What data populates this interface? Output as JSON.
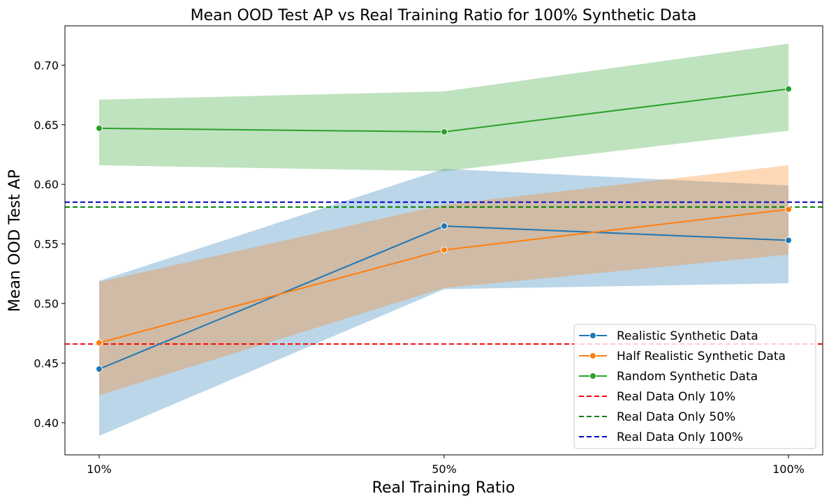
{
  "chart_data": {
    "type": "line",
    "title": "Mean OOD Test AP vs Real Training Ratio for 100% Synthetic Data",
    "xlabel": "Real Training Ratio",
    "ylabel": "Mean OOD Test AP",
    "categories": [
      "10%",
      "50%",
      "100%"
    ],
    "ylim": [
      0.373,
      0.733
    ],
    "yticks": [
      "0.40",
      "0.45",
      "0.50",
      "0.55",
      "0.60",
      "0.65",
      "0.70"
    ],
    "ytick_values": [
      0.4,
      0.45,
      0.5,
      0.55,
      0.6,
      0.65,
      0.7
    ],
    "series": [
      {
        "name": "Realistic Synthetic Data",
        "color": "#1f77b4",
        "band_color": "#1f77b4",
        "values": [
          0.445,
          0.565,
          0.553
        ],
        "lower": [
          0.389,
          0.512,
          0.517
        ],
        "upper": [
          0.519,
          0.613,
          0.599
        ]
      },
      {
        "name": "Half Realistic Synthetic Data",
        "color": "#ff7f0e",
        "band_color": "#ff7f0e",
        "values": [
          0.467,
          0.545,
          0.579
        ],
        "lower": [
          0.423,
          0.513,
          0.541
        ],
        "upper": [
          0.518,
          0.583,
          0.616
        ]
      },
      {
        "name": "Random Synthetic Data",
        "color": "#2ca02c",
        "band_color": "#2ca02c",
        "values": [
          0.647,
          0.644,
          0.68
        ],
        "lower": [
          0.616,
          0.611,
          0.645
        ],
        "upper": [
          0.671,
          0.678,
          0.718
        ]
      }
    ],
    "reference_lines": [
      {
        "name": "Real Data Only 10%",
        "color": "#ff0000",
        "value": 0.466
      },
      {
        "name": "Real Data Only 50%",
        "color": "#008000",
        "value": 0.581
      },
      {
        "name": "Real Data Only 100%",
        "color": "#0000cc",
        "value": 0.585
      }
    ],
    "legend_position": "bottom-right",
    "grid": false
  }
}
